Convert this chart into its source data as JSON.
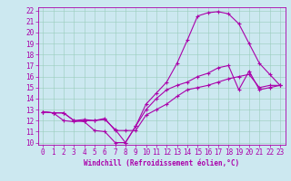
{
  "xlabel": "Windchill (Refroidissement éolien,°C)",
  "bg_color": "#cce8f0",
  "grid_color": "#99ccbb",
  "line_color": "#aa00aa",
  "spine_color": "#aa00aa",
  "xlim": [
    -0.5,
    23.5
  ],
  "ylim": [
    9.8,
    22.3
  ],
  "xticks": [
    0,
    1,
    2,
    3,
    4,
    5,
    6,
    7,
    8,
    9,
    10,
    11,
    12,
    13,
    14,
    15,
    16,
    17,
    18,
    19,
    20,
    21,
    22,
    23
  ],
  "yticks": [
    10,
    11,
    12,
    13,
    14,
    15,
    16,
    17,
    18,
    19,
    20,
    21,
    22
  ],
  "line1_x": [
    0,
    1,
    2,
    3,
    4,
    5,
    6,
    7,
    8,
    9,
    10,
    11,
    12,
    13,
    14,
    15,
    16,
    17,
    18,
    19,
    20,
    21,
    22,
    23
  ],
  "line1_y": [
    12.8,
    12.7,
    12.7,
    12.0,
    11.9,
    11.1,
    11.0,
    10.0,
    10.0,
    11.5,
    13.0,
    14.0,
    14.8,
    15.2,
    15.5,
    16.0,
    16.3,
    16.8,
    17.0,
    14.8,
    16.5,
    14.8,
    15.0,
    15.2
  ],
  "line2_x": [
    0,
    1,
    2,
    3,
    4,
    5,
    6,
    7,
    8,
    9,
    10,
    11,
    12,
    13,
    14,
    15,
    16,
    17,
    18,
    19,
    20,
    21,
    22,
    23
  ],
  "line2_y": [
    12.8,
    12.7,
    12.7,
    12.0,
    12.1,
    12.0,
    12.1,
    11.2,
    10.0,
    11.5,
    13.5,
    14.5,
    15.5,
    17.2,
    19.3,
    21.5,
    21.8,
    21.9,
    21.7,
    20.8,
    19.0,
    17.2,
    16.2,
    15.2
  ],
  "line3_x": [
    0,
    1,
    2,
    3,
    4,
    5,
    6,
    7,
    8,
    9,
    10,
    11,
    12,
    13,
    14,
    15,
    16,
    17,
    18,
    19,
    20,
    21,
    22,
    23
  ],
  "line3_y": [
    12.8,
    12.7,
    12.0,
    11.9,
    12.0,
    12.0,
    12.2,
    11.1,
    11.1,
    11.1,
    12.5,
    13.0,
    13.5,
    14.2,
    14.8,
    15.0,
    15.2,
    15.5,
    15.8,
    16.0,
    16.2,
    15.0,
    15.2,
    15.2
  ],
  "tick_fontsize": 5.5,
  "xlabel_fontsize": 5.5,
  "marker": "+",
  "markersize": 3,
  "linewidth": 0.8
}
